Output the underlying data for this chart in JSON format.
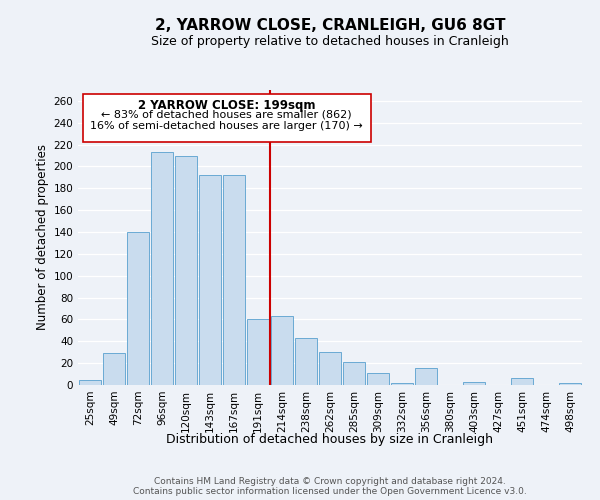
{
  "title": "2, YARROW CLOSE, CRANLEIGH, GU6 8GT",
  "subtitle": "Size of property relative to detached houses in Cranleigh",
  "xlabel": "Distribution of detached houses by size in Cranleigh",
  "ylabel": "Number of detached properties",
  "bar_labels": [
    "25sqm",
    "49sqm",
    "72sqm",
    "96sqm",
    "120sqm",
    "143sqm",
    "167sqm",
    "191sqm",
    "214sqm",
    "238sqm",
    "262sqm",
    "285sqm",
    "309sqm",
    "332sqm",
    "356sqm",
    "380sqm",
    "403sqm",
    "427sqm",
    "451sqm",
    "474sqm",
    "498sqm"
  ],
  "bar_values": [
    5,
    29,
    140,
    213,
    210,
    192,
    192,
    60,
    63,
    43,
    30,
    21,
    11,
    2,
    16,
    0,
    3,
    0,
    6,
    0,
    2
  ],
  "bar_color": "#c9dcee",
  "bar_edge_color": "#6aaad4",
  "property_label": "2 YARROW CLOSE: 199sqm",
  "annotation_line1": "← 83% of detached houses are smaller (862)",
  "annotation_line2": "16% of semi-detached houses are larger (170) →",
  "vline_color": "#cc0000",
  "vline_x_index": 7.5,
  "ylim": [
    0,
    270
  ],
  "yticks": [
    0,
    20,
    40,
    60,
    80,
    100,
    120,
    140,
    160,
    180,
    200,
    220,
    240,
    260
  ],
  "annotation_box_color": "#ffffff",
  "annotation_box_edge": "#cc0000",
  "footer_line1": "Contains HM Land Registry data © Crown copyright and database right 2024.",
  "footer_line2": "Contains public sector information licensed under the Open Government Licence v3.0.",
  "bg_color": "#eef2f8",
  "grid_color": "#ffffff",
  "title_fontsize": 11,
  "subtitle_fontsize": 9,
  "axis_label_fontsize": 8.5,
  "tick_fontsize": 7.5,
  "footer_fontsize": 6.5
}
